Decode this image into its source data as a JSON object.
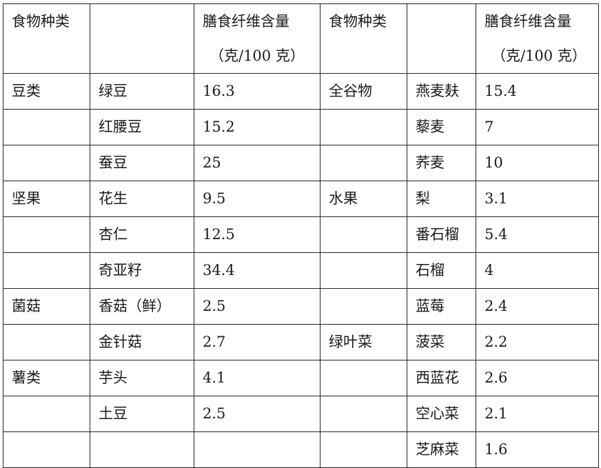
{
  "header": {
    "category": "食物种类",
    "blank": "",
    "fiber_line1": "膳食纤维含量",
    "fiber_line2": "（克/100 克）"
  },
  "rows": [
    [
      "豆类",
      "绿豆",
      "16.3",
      "全谷物",
      "燕麦麸",
      "15.4"
    ],
    [
      "",
      "红腰豆",
      "15.2",
      "",
      "藜麦",
      "7"
    ],
    [
      "",
      "蚕豆",
      "25",
      "",
      "荞麦",
      "10"
    ],
    [
      "坚果",
      "花生",
      "9.5",
      "水果",
      "梨",
      "3.1"
    ],
    [
      "",
      "杏仁",
      "12.5",
      "",
      "番石榴",
      "5.4"
    ],
    [
      "",
      "奇亚籽",
      "34.4",
      "",
      "石榴",
      "4"
    ],
    [
      "菌菇",
      "香菇（鲜）",
      "2.5",
      "",
      "蓝莓",
      "2.4"
    ],
    [
      "",
      "金针菇",
      "2.7",
      "绿叶菜",
      "菠菜",
      "2.2"
    ],
    [
      "薯类",
      "芋头",
      "4.1",
      "",
      "西蓝花",
      "2.6"
    ],
    [
      "",
      "土豆",
      "2.5",
      "",
      "空心菜",
      "2.1"
    ],
    [
      "",
      "",
      "",
      "",
      "芝麻菜",
      "1.6"
    ]
  ]
}
